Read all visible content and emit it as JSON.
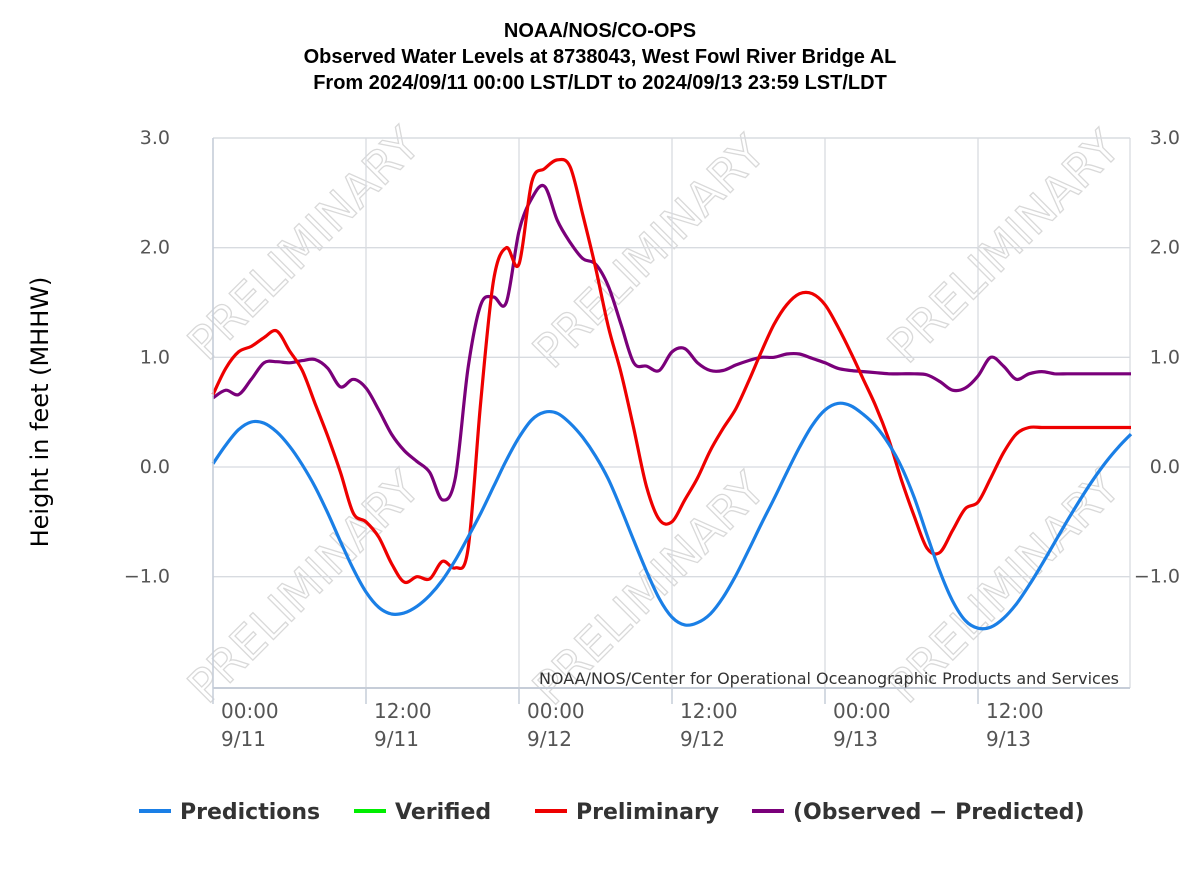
{
  "title_lines": [
    "NOAA/NOS/CO-OPS",
    "Observed Water Levels at 8738043, West Fowl River Bridge AL",
    "From 2024/09/11 00:00 LST/LDT to 2024/09/13 23:59 LST/LDT"
  ],
  "credit": "NOAA/NOS/Center for Operational Oceanographic Products and Services",
  "watermark": "PRELIMINARY",
  "colors": {
    "Predictions": "#1a7fe6",
    "Verified": "#00ee00",
    "Preliminary": "#ee0000",
    "(Observed - Predicted)": "#7a007a"
  },
  "chart_data": {
    "type": "line",
    "title": "NOAA/NOS/CO-OPS Observed Water Levels at 8738043, West Fowl River Bridge AL From 2024/09/11 00:00 LST/LDT to 2024/09/13 23:59 LST/LDT",
    "ylabel": "Height in feet (MHHW)",
    "ylim": [
      -2.0,
      3.0
    ],
    "xlim": [
      "2024-09-11 00:00",
      "2024-09-14 00:00"
    ],
    "y_ticks": [
      "3.0",
      "2.0",
      "1.0",
      "0.0",
      "−1.0"
    ],
    "y_tick_values": [
      3.0,
      2.0,
      1.0,
      0.0,
      -1.0
    ],
    "x_ticks": [
      {
        "time": "00:00",
        "date": "9/11",
        "hours": 0
      },
      {
        "time": "12:00",
        "date": "9/11",
        "hours": 12
      },
      {
        "time": "00:00",
        "date": "9/12",
        "hours": 24
      },
      {
        "time": "12:00",
        "date": "9/12",
        "hours": 36
      },
      {
        "time": "00:00",
        "date": "9/13",
        "hours": 48
      },
      {
        "time": "12:00",
        "date": "9/13",
        "hours": 60
      }
    ],
    "grid": true,
    "legend_position": "bottom",
    "legend": [
      "Predictions",
      "Verified",
      "Preliminary",
      "(Observed − Predicted)"
    ],
    "series": [
      {
        "name": "Predictions",
        "x_hours": [
          0,
          1,
          2,
          3,
          4,
          5,
          6,
          7,
          8,
          9,
          10,
          11,
          12,
          13,
          14,
          15,
          16,
          17,
          18,
          19,
          20,
          21,
          22,
          23,
          24,
          25,
          26,
          27,
          28,
          29,
          30,
          31,
          32,
          33,
          34,
          35,
          36,
          37,
          38,
          39,
          40,
          41,
          42,
          43,
          44,
          45,
          46,
          47,
          48,
          49,
          50,
          51,
          52,
          53,
          54,
          55,
          56,
          57,
          58,
          59,
          60,
          61,
          62,
          63,
          64,
          65,
          66,
          67,
          68,
          69,
          70,
          71,
          72
        ],
        "values": [
          0.03,
          0.2,
          0.34,
          0.41,
          0.4,
          0.32,
          0.19,
          0.02,
          -0.18,
          -0.42,
          -0.68,
          -0.93,
          -1.14,
          -1.28,
          -1.34,
          -1.33,
          -1.27,
          -1.17,
          -1.03,
          -0.85,
          -0.64,
          -0.42,
          -0.18,
          0.06,
          0.27,
          0.43,
          0.5,
          0.49,
          0.4,
          0.27,
          0.1,
          -0.11,
          -0.38,
          -0.67,
          -0.95,
          -1.2,
          -1.37,
          -1.44,
          -1.42,
          -1.34,
          -1.19,
          -0.99,
          -0.76,
          -0.52,
          -0.29,
          -0.05,
          0.18,
          0.38,
          0.52,
          0.58,
          0.56,
          0.48,
          0.37,
          0.21,
          0.0,
          -0.28,
          -0.62,
          -0.95,
          -1.22,
          -1.4,
          -1.47,
          -1.46,
          -1.38,
          -1.25,
          -1.08,
          -0.89,
          -0.69,
          -0.49,
          -0.3,
          -0.12,
          0.04,
          0.18,
          0.3
        ]
      },
      {
        "name": "Verified",
        "x_hours": [],
        "values": []
      },
      {
        "name": "Preliminary",
        "x_hours": [
          0,
          1,
          2,
          3,
          4,
          5,
          6,
          7,
          8,
          9,
          10,
          11,
          12,
          13,
          14,
          15,
          16,
          17,
          18,
          19,
          20,
          21,
          22,
          23,
          24,
          25,
          26,
          27,
          28,
          29,
          30,
          31,
          32,
          33,
          34,
          35,
          36,
          37,
          38,
          39,
          40,
          41,
          42,
          43,
          44,
          45,
          46,
          47,
          48,
          49,
          50,
          51,
          52,
          53,
          54,
          55,
          56,
          57,
          58,
          59,
          60,
          61,
          62,
          63,
          64,
          65,
          66,
          67,
          68,
          69,
          70,
          71,
          72
        ],
        "values": [
          0.66,
          0.9,
          1.05,
          1.1,
          1.18,
          1.24,
          1.06,
          0.88,
          0.58,
          0.28,
          -0.05,
          -0.42,
          -0.5,
          -0.64,
          -0.88,
          -1.05,
          -1.0,
          -1.02,
          -0.86,
          -0.92,
          -0.75,
          0.6,
          1.7,
          2.0,
          1.85,
          2.6,
          2.72,
          2.8,
          2.74,
          2.3,
          1.82,
          1.28,
          0.86,
          0.35,
          -0.18,
          -0.48,
          -0.5,
          -0.3,
          -0.1,
          0.15,
          0.35,
          0.53,
          0.78,
          1.05,
          1.3,
          1.48,
          1.58,
          1.58,
          1.48,
          1.28,
          1.05,
          0.8,
          0.55,
          0.25,
          -0.12,
          -0.45,
          -0.74,
          -0.78,
          -0.58,
          -0.38,
          -0.32,
          -0.1,
          0.13,
          0.3,
          0.36,
          0.36,
          0.36,
          0.36,
          0.36,
          0.36,
          0.36,
          0.36,
          0.36
        ]
      },
      {
        "name": "(Observed − Predicted)",
        "x_hours": [
          0,
          1,
          2,
          3,
          4,
          5,
          6,
          7,
          8,
          9,
          10,
          11,
          12,
          13,
          14,
          15,
          16,
          17,
          18,
          19,
          20,
          21,
          22,
          23,
          24,
          25,
          26,
          27,
          28,
          29,
          30,
          31,
          32,
          33,
          34,
          35,
          36,
          37,
          38,
          39,
          40,
          41,
          42,
          43,
          44,
          45,
          46,
          47,
          48,
          49,
          50,
          51,
          52,
          53,
          54,
          55,
          56,
          57,
          58,
          59,
          60,
          61,
          62,
          63,
          64,
          65,
          66,
          67,
          68,
          69,
          70,
          71,
          72
        ],
        "values": [
          0.63,
          0.7,
          0.66,
          0.8,
          0.95,
          0.96,
          0.95,
          0.97,
          0.98,
          0.9,
          0.73,
          0.8,
          0.72,
          0.52,
          0.3,
          0.15,
          0.05,
          -0.05,
          -0.3,
          -0.1,
          0.9,
          1.48,
          1.55,
          1.5,
          2.15,
          2.45,
          2.56,
          2.25,
          2.05,
          1.9,
          1.85,
          1.65,
          1.3,
          0.95,
          0.92,
          0.88,
          1.05,
          1.08,
          0.95,
          0.88,
          0.88,
          0.93,
          0.97,
          1.0,
          1.0,
          1.03,
          1.03,
          0.99,
          0.95,
          0.9,
          0.88,
          0.87,
          0.86,
          0.85,
          0.85,
          0.85,
          0.84,
          0.78,
          0.7,
          0.72,
          0.83,
          1.0,
          0.92,
          0.8,
          0.85,
          0.87,
          0.85,
          0.85,
          0.85,
          0.85,
          0.85,
          0.85,
          0.85
        ]
      }
    ]
  }
}
